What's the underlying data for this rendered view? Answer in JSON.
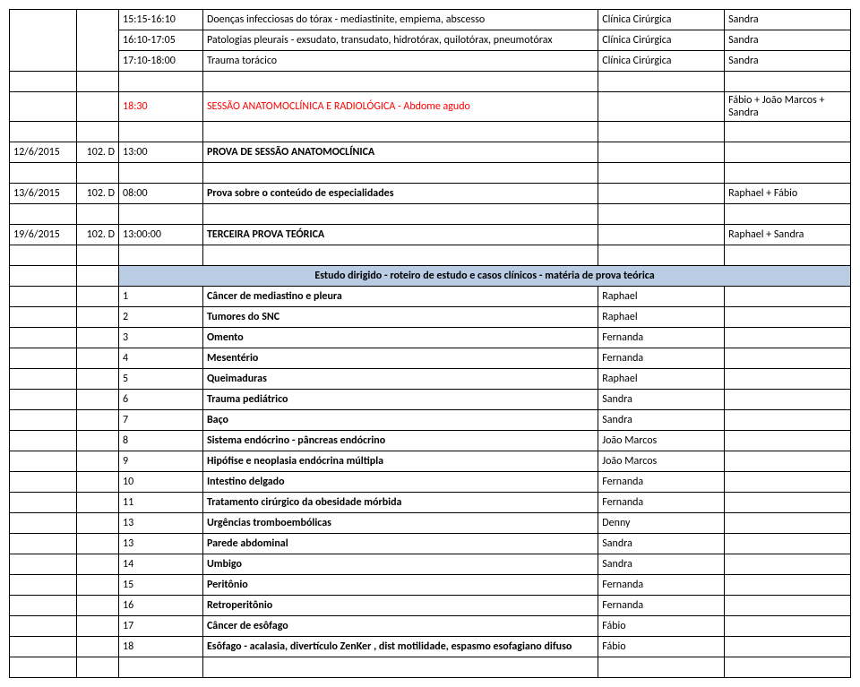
{
  "top_rows": [
    {
      "time": "15:15-16:10",
      "desc": "Doenças infecciosas do tórax - mediastinite, empiema, abscesso",
      "place": "Clínica Cirúrgica",
      "who": "Sandra"
    },
    {
      "time": "16:10-17:05",
      "desc": "Patologias pleurais - exsudato, transudato, hidrotórax, quilotórax, pneumotórax",
      "place": "Clínica Cirúrgica",
      "who": "Sandra"
    },
    {
      "time": "17:10-18:00",
      "desc": "Trauma torácico",
      "place": "Clínica Cirúrgica",
      "who": "Sandra"
    }
  ],
  "session_row": {
    "time": "18:30",
    "desc": "SESSÃO ANATOMOCLÍNICA E RADIOLÓGICA - Abdome agudo",
    "who": "Fábio + João Marcos + Sandra"
  },
  "exam_rows": [
    {
      "date": "12/6/2015",
      "code": "102. D",
      "time": "13:00",
      "desc": "PROVA DE SESSÃO ANATOMOCLÍNICA",
      "who": ""
    },
    {
      "date": "13/6/2015",
      "code": "102. D",
      "time": "08:00",
      "desc": "Prova sobre o conteúdo de especialidades",
      "who": "Raphael + Fábio"
    },
    {
      "date": "19/6/2015",
      "code": "102. D",
      "time": "13:00:00",
      "desc": "TERCEIRA PROVA TEÓRICA",
      "who": "Raphael + Sandra"
    }
  ],
  "section_title": "Estudo dirigido - roteiro de estudo e casos clínicos - matéria de prova teórica",
  "study_items": [
    {
      "n": "1",
      "topic": "Câncer de mediastino e pleura",
      "who": "Raphael"
    },
    {
      "n": "2",
      "topic": "Tumores do SNC",
      "who": "Raphael"
    },
    {
      "n": "3",
      "topic": "Omento",
      "who": "Fernanda"
    },
    {
      "n": "4",
      "topic": "Mesentério",
      "who": "Fernanda"
    },
    {
      "n": "5",
      "topic": "Queimaduras",
      "who": "Raphael"
    },
    {
      "n": "6",
      "topic": "Trauma pediátrico",
      "who": "Sandra"
    },
    {
      "n": "7",
      "topic": "Baço",
      "who": "Sandra"
    },
    {
      "n": "8",
      "topic": "Sistema endócrino - pâncreas endócrino",
      "who": "João Marcos"
    },
    {
      "n": "9",
      "topic": "Hipófise e neoplasia endócrina múltipla",
      "who": "João Marcos"
    },
    {
      "n": "10",
      "topic": "Intestino delgado",
      "who": "Fernanda"
    },
    {
      "n": "11",
      "topic": "Tratamento cirúrgico da obesidade mórbida",
      "who": "Fernanda"
    },
    {
      "n": "13",
      "topic": "Urgências tromboembólicas",
      "who": "Denny"
    },
    {
      "n": "13",
      "topic": "Parede abdominal",
      "who": "Sandra"
    },
    {
      "n": "14",
      "topic": "Umbigo",
      "who": "Sandra"
    },
    {
      "n": "15",
      "topic": "Peritônio",
      "who": "Fernanda"
    },
    {
      "n": "16",
      "topic": "Retroperitônio",
      "who": "Fernanda"
    },
    {
      "n": "17",
      "topic": "Câncer de esôfago",
      "who": "Fábio"
    },
    {
      "n": "18",
      "topic": "Esôfago - acalasia, divertículo ZenKer , dist motilidade, espasmo esofagiano difuso",
      "who": "Fábio"
    }
  ]
}
